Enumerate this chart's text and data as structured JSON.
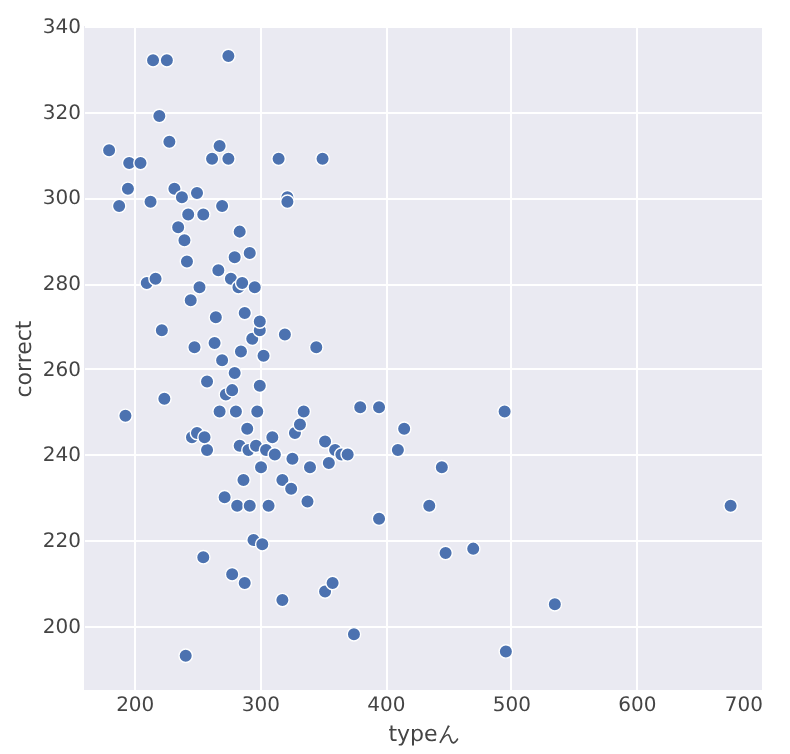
{
  "chart_data": {
    "type": "scatter",
    "xlabel": "typeん",
    "ylabel": "correct",
    "series": [
      {
        "color": "#4c72b0",
        "x": [
          180,
          188,
          195,
          196,
          205,
          210,
          213,
          215,
          217,
          220,
          222,
          224,
          226,
          228,
          193,
          232,
          235,
          238,
          240,
          242,
          243,
          245,
          246,
          248,
          250,
          250,
          252,
          255,
          255,
          258,
          258,
          262,
          264,
          265,
          267,
          268,
          268,
          270,
          270,
          272,
          273,
          275,
          275,
          277,
          278,
          278,
          280,
          280,
          281,
          282,
          283,
          284,
          284,
          285,
          286,
          287,
          288,
          288,
          290,
          291,
          292,
          292,
          294,
          295,
          296,
          297,
          298,
          300,
          300,
          300,
          301,
          302,
          303,
          305,
          307,
          310,
          312,
          315,
          318,
          318,
          320,
          322,
          322,
          325,
          326,
          328,
          332,
          335,
          338,
          340,
          345,
          350,
          352,
          352,
          355,
          358,
          360,
          365,
          370,
          375,
          380,
          395,
          395,
          410,
          415,
          435,
          445,
          448,
          470,
          495,
          496,
          535,
          675,
          241,
          256
        ],
        "values": [
          311,
          298,
          302,
          308,
          308,
          280,
          299,
          332,
          281,
          319,
          269,
          253,
          332,
          313,
          249,
          302,
          293,
          300,
          290,
          285,
          296,
          276,
          244,
          265,
          245,
          301,
          279,
          296,
          216,
          257,
          241,
          309,
          266,
          272,
          283,
          312,
          250,
          262,
          298,
          230,
          254,
          333,
          309,
          281,
          255,
          212,
          286,
          259,
          250,
          228,
          279,
          292,
          242,
          264,
          280,
          234,
          273,
          210,
          246,
          241,
          287,
          228,
          267,
          220,
          279,
          242,
          250,
          269,
          271,
          256,
          237,
          219,
          263,
          241,
          228,
          244,
          240,
          309,
          206,
          234,
          268,
          300,
          299,
          232,
          239,
          245,
          247,
          250,
          229,
          237,
          265,
          309,
          208,
          243,
          238,
          210,
          241,
          240,
          240,
          198,
          251,
          225,
          251,
          241,
          246,
          228,
          237,
          217,
          218,
          250,
          194,
          205,
          228,
          193,
          244
        ]
      }
    ],
    "xlim": [
      160,
      700
    ],
    "ylim": [
      185,
      340
    ],
    "xticks": [
      200,
      300,
      400,
      500,
      600,
      700
    ],
    "yticks": [
      200,
      220,
      240,
      260,
      280,
      300,
      320,
      340
    ],
    "grid": true
  }
}
